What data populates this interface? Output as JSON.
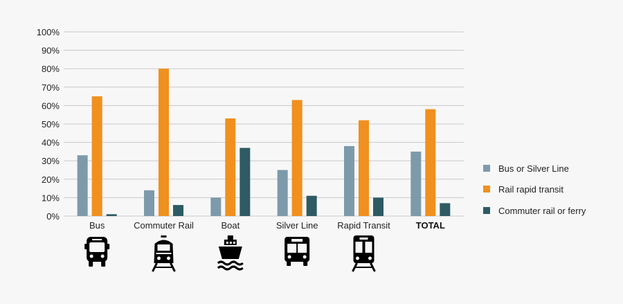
{
  "colors": {
    "bus_or_silver_line": "#7d9aab",
    "rail_rapid_transit": "#f0901e",
    "commuter_rail_or_ferry": "#2e5b63",
    "gridline": "#c9c9c9",
    "icon": "#000000"
  },
  "chart_data": {
    "type": "bar",
    "title": "",
    "xlabel": "",
    "ylabel": "",
    "ylim": [
      0,
      100
    ],
    "y_ticks": [
      "0%",
      "10%",
      "20%",
      "30%",
      "40%",
      "50%",
      "60%",
      "70%",
      "80%",
      "90%",
      "100%"
    ],
    "grid": true,
    "legend_position": "right",
    "categories": [
      "Bus",
      "Commuter Rail",
      "Boat",
      "Silver Line",
      "Rapid Transit",
      "TOTAL"
    ],
    "category_icons": [
      "bus-icon",
      "commuter-train-icon",
      "boat-icon",
      "silver-line-bus-icon",
      "rapid-transit-train-icon",
      ""
    ],
    "series": [
      {
        "name": "Bus or Silver Line",
        "values": [
          33,
          14,
          10,
          25,
          38,
          35
        ]
      },
      {
        "name": "Rail rapid transit",
        "values": [
          65,
          80,
          53,
          63,
          52,
          58
        ]
      },
      {
        "name": "Commuter rail or ferry",
        "values": [
          1,
          6,
          37,
          11,
          10,
          7
        ]
      }
    ]
  }
}
